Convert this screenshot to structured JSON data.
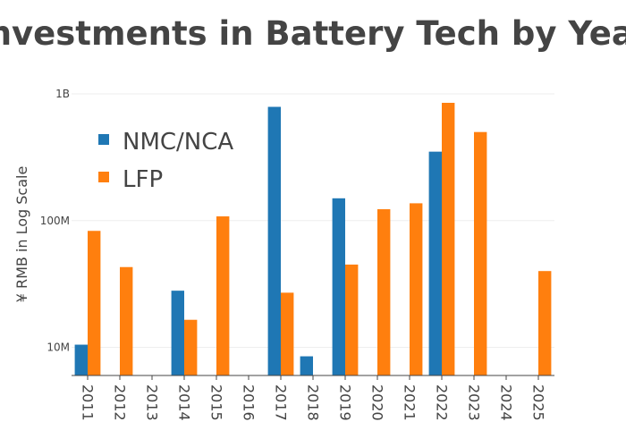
{
  "chart_data": {
    "type": "bar",
    "title": "Investments in Battery Tech by Year",
    "ylabel": "¥ RMB  in Log Scale",
    "xlabel": "",
    "yscale": "log",
    "ylim": [
      6000000,
      1000000000
    ],
    "yticks": [
      {
        "value": 10000000,
        "label": "10M"
      },
      {
        "value": 100000000,
        "label": "100M"
      },
      {
        "value": 1000000000,
        "label": "1B"
      }
    ],
    "categories": [
      "2011",
      "2012",
      "2013",
      "2014",
      "2015",
      "2016",
      "2017",
      "2018",
      "2019",
      "2020",
      "2021",
      "2022",
      "2023",
      "2024",
      "2025"
    ],
    "series": [
      {
        "name": "NMC/NCA",
        "color": "#1f77b4",
        "values": [
          10500000,
          null,
          null,
          28000000,
          null,
          null,
          790000000,
          8500000,
          150000000,
          null,
          null,
          350000000,
          null,
          null,
          null
        ]
      },
      {
        "name": "LFP",
        "color": "#ff7f0e",
        "values": [
          83000000,
          43000000,
          null,
          16500000,
          108000000,
          null,
          27000000,
          null,
          45000000,
          123000000,
          137000000,
          850000000,
          500000000,
          null,
          40000000
        ]
      }
    ],
    "legend": "top-left",
    "grid": true
  }
}
